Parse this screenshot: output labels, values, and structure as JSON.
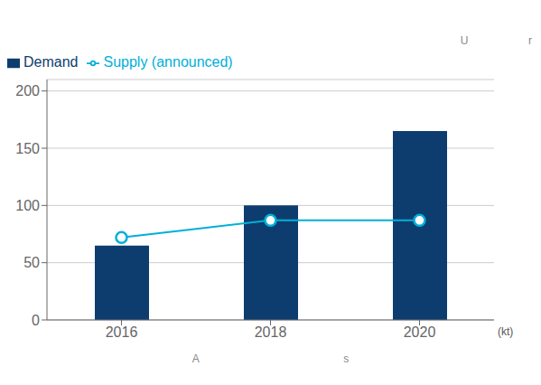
{
  "chart_data": {
    "type": "bar",
    "categories": [
      "2016",
      "2018",
      "2020"
    ],
    "series": [
      {
        "name": "Demand",
        "type": "bar",
        "color": "#0d3d6e",
        "values": [
          65,
          100,
          165
        ]
      },
      {
        "name": "Supply (announced)",
        "type": "line",
        "color": "#00b0d8",
        "marker": "circle",
        "line_style": "solid",
        "values": [
          72,
          87,
          87
        ]
      }
    ],
    "x_label": "A                                                s",
    "annotations": [
      {
        "text": "(kt)"
      },
      {
        "text": "U                    r"
      }
    ],
    "ylim": [
      0,
      210
    ],
    "yticks": [
      0,
      50,
      100,
      150,
      200
    ],
    "grid": true,
    "legend": "upper left"
  }
}
